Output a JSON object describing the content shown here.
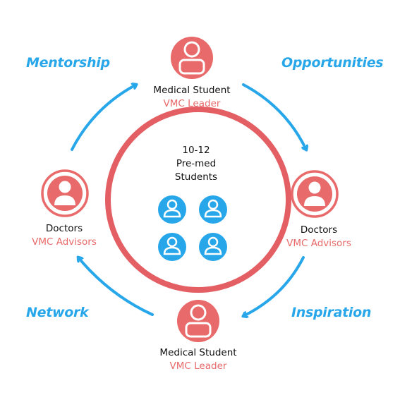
{
  "colors": {
    "red": "#e86a6a",
    "red_ring": "#e35f63",
    "blue": "#27a7ea"
  },
  "cycle_labels": {
    "top_left": "Mentorship",
    "top_right": "Opportunities",
    "bottom_left": "Network",
    "bottom_right": "Inspiration"
  },
  "nodes": {
    "top": {
      "role": "Medical Student",
      "sub": "VMC Leader",
      "icon": "person-icon"
    },
    "right": {
      "role": "Doctors",
      "sub": "VMC Advisors",
      "icon": "person-icon"
    },
    "bottom": {
      "role": "Medical Student",
      "sub": "VMC Leader",
      "icon": "person-icon"
    },
    "left": {
      "role": "Doctors",
      "sub": "VMC Advisors",
      "icon": "person-icon"
    }
  },
  "center": {
    "line1": "10-12",
    "line2": "Pre-med",
    "line3": "Students",
    "icon": "student-icon"
  }
}
